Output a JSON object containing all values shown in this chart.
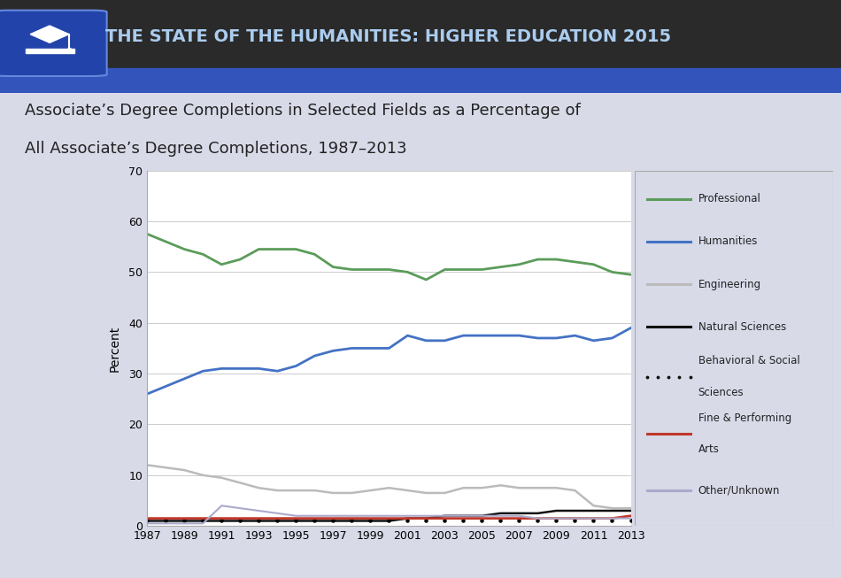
{
  "title_line1": "Associate’s Degree Completions in Selected Fields as a Percentage of",
  "title_line2": "All Associate’s Degree Completions, 1987–2013",
  "header_title": "THE STATE OF THE HUMANITIES: HIGHER EDUCATION 2015",
  "years": [
    1987,
    1988,
    1989,
    1990,
    1991,
    1992,
    1993,
    1994,
    1995,
    1996,
    1997,
    1998,
    1999,
    2000,
    2001,
    2002,
    2003,
    2004,
    2005,
    2006,
    2007,
    2008,
    2009,
    2010,
    2011,
    2012,
    2013
  ],
  "professional": [
    57.5,
    56.0,
    54.5,
    53.5,
    51.5,
    52.5,
    54.5,
    54.5,
    54.5,
    53.5,
    51.0,
    50.5,
    50.5,
    50.5,
    50.0,
    48.5,
    50.5,
    50.5,
    50.5,
    51.0,
    51.5,
    52.5,
    52.5,
    52.0,
    51.5,
    50.0,
    49.5
  ],
  "humanities": [
    26.0,
    27.5,
    29.0,
    30.5,
    31.0,
    31.0,
    31.0,
    30.5,
    31.5,
    33.5,
    34.5,
    35.0,
    35.0,
    35.0,
    37.5,
    36.5,
    36.5,
    37.5,
    37.5,
    37.5,
    37.5,
    37.0,
    37.0,
    37.5,
    36.5,
    37.0,
    39.0
  ],
  "engineering": [
    12.0,
    11.5,
    11.0,
    10.0,
    9.5,
    8.5,
    7.5,
    7.0,
    7.0,
    7.0,
    6.5,
    6.5,
    7.0,
    7.5,
    7.0,
    6.5,
    6.5,
    7.5,
    7.5,
    8.0,
    7.5,
    7.5,
    7.5,
    7.0,
    4.0,
    3.5,
    3.5
  ],
  "natural_sciences": [
    1.0,
    1.0,
    1.0,
    1.0,
    1.0,
    1.0,
    1.0,
    1.0,
    1.0,
    1.0,
    1.0,
    1.0,
    1.0,
    1.0,
    1.5,
    1.5,
    2.0,
    2.0,
    2.0,
    2.5,
    2.5,
    2.5,
    3.0,
    3.0,
    3.0,
    3.0,
    3.0
  ],
  "behavioral_social": [
    1.0,
    1.0,
    1.0,
    1.0,
    1.0,
    1.0,
    1.0,
    1.0,
    1.0,
    1.0,
    1.0,
    1.0,
    1.0,
    1.0,
    1.0,
    1.0,
    1.0,
    1.0,
    1.0,
    1.0,
    1.0,
    1.0,
    1.0,
    1.0,
    1.0,
    1.0,
    1.0
  ],
  "fine_performing": [
    1.5,
    1.5,
    1.5,
    1.5,
    1.5,
    1.5,
    1.5,
    1.5,
    1.5,
    1.5,
    1.5,
    1.5,
    1.5,
    1.5,
    1.5,
    1.5,
    1.5,
    1.5,
    1.5,
    1.5,
    1.5,
    1.5,
    1.5,
    1.5,
    1.5,
    1.5,
    2.0
  ],
  "other_unknown": [
    0.5,
    0.5,
    0.5,
    0.5,
    4.0,
    3.5,
    3.0,
    2.5,
    2.0,
    2.0,
    2.0,
    2.0,
    2.0,
    2.0,
    2.0,
    2.0,
    2.0,
    2.0,
    2.0,
    2.0,
    2.0,
    1.5,
    1.5,
    1.5,
    1.5,
    1.5,
    1.5
  ],
  "professional_color": "#5B9C5A",
  "humanities_color": "#4472C4",
  "engineering_color": "#BBBBBB",
  "natural_sciences_color": "#111111",
  "behavioral_social_color": "#111111",
  "fine_performing_color": "#C0392B",
  "other_unknown_color": "#AAAACC",
  "bg_color": "#D8DAE8",
  "plot_bg": "#FFFFFF",
  "ylabel": "Percent",
  "ylim": [
    0,
    70
  ],
  "yticks": [
    0,
    10,
    20,
    30,
    40,
    50,
    60,
    70
  ]
}
